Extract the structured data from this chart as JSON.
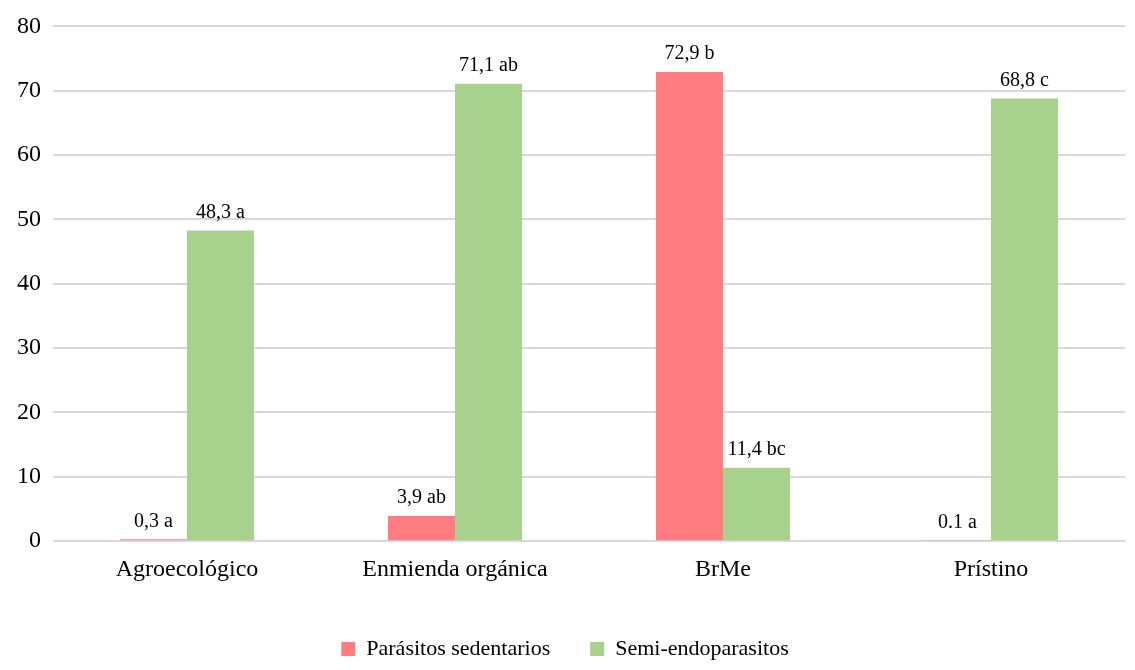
{
  "chart_data": {
    "type": "bar",
    "categories": [
      "Agroecológico",
      "Enmienda orgánica",
      "BrMe",
      "Prístino"
    ],
    "series": [
      {
        "name": "Parásitos sedentarios",
        "color": "#ff7c80",
        "values": [
          0.3,
          3.9,
          72.9,
          0.1
        ],
        "value_labels": [
          "0,3 a",
          "3,9 ab",
          "72,9 b",
          "0.1 a"
        ]
      },
      {
        "name": "Semi-endoparasitos",
        "color": "#a9d18e",
        "values": [
          48.3,
          71.1,
          11.4,
          68.8
        ],
        "value_labels": [
          "48,3 a",
          "71,1 ab",
          "11,4 bc",
          "68,8 c"
        ]
      }
    ],
    "ylim": [
      0,
      80
    ],
    "yticks": [
      0,
      10,
      20,
      30,
      40,
      50,
      60,
      70,
      80
    ],
    "grid": "y",
    "legend": "bottom"
  }
}
